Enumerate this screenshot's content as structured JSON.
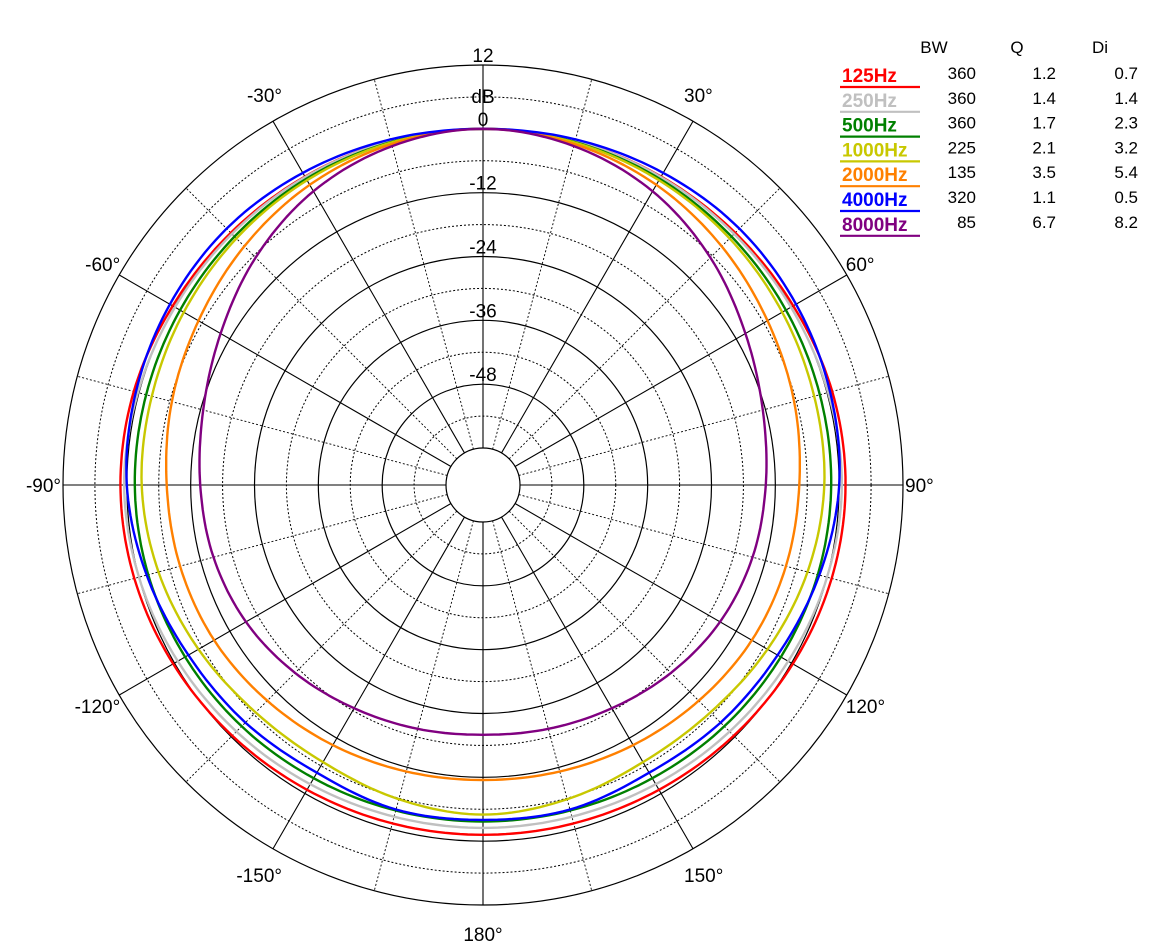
{
  "chart_data": {
    "type": "polar",
    "units_label": "dB",
    "radial_ticks": [
      12,
      0,
      -12,
      -24,
      -36,
      -48
    ],
    "radial_range": [
      -60,
      12
    ],
    "angle_labels": [
      {
        "angle": 0,
        "text": ""
      },
      {
        "angle": 30,
        "text": "30°"
      },
      {
        "angle": 60,
        "text": "60°"
      },
      {
        "angle": 90,
        "text": "90°"
      },
      {
        "angle": 120,
        "text": "120°"
      },
      {
        "angle": 150,
        "text": "150°"
      },
      {
        "angle": 180,
        "text": "180°"
      },
      {
        "angle": -150,
        "text": "-150°"
      },
      {
        "angle": -120,
        "text": "-120°"
      },
      {
        "angle": -90,
        "text": "-90°"
      },
      {
        "angle": -60,
        "text": "-60°"
      },
      {
        "angle": -30,
        "text": "-30°"
      }
    ],
    "grid": true,
    "legend": {
      "placement": "top-right",
      "headers": [
        "BW",
        "Q",
        "Di"
      ]
    },
    "angles": [
      0,
      15,
      30,
      45,
      60,
      75,
      90,
      105,
      120,
      135,
      150,
      165,
      180,
      195,
      210,
      225,
      240,
      255,
      270,
      285,
      300,
      315,
      330,
      345
    ],
    "series": [
      {
        "name": "125Hz",
        "color": "#ff0000",
        "bw": "360",
        "q": "1.2",
        "di": "0.7",
        "values": [
          0,
          0,
          0,
          0.1,
          0.4,
          1.0,
          1.2,
          0.9,
          0.3,
          -0.3,
          -0.8,
          -1.1,
          -1.2,
          -1.1,
          -0.8,
          -0.3,
          0.3,
          0.9,
          1.2,
          1.0,
          0.4,
          0.1,
          0,
          0
        ]
      },
      {
        "name": "250Hz",
        "color": "#c0c0c0",
        "bw": "360",
        "q": "1.4",
        "di": "1.4",
        "values": [
          0,
          0,
          -0.1,
          -0.2,
          -0.1,
          0.2,
          0.5,
          0.0,
          -0.7,
          -1.4,
          -2.0,
          -2.4,
          -2.5,
          -2.4,
          -2.0,
          -1.4,
          -0.7,
          0.0,
          0.5,
          0.2,
          -0.1,
          -0.2,
          -0.1,
          0
        ]
      },
      {
        "name": "500Hz",
        "color": "#008000",
        "bw": "360",
        "q": "1.7",
        "di": "2.3",
        "values": [
          0,
          -0.2,
          -0.5,
          -0.9,
          -1.2,
          -1.4,
          -1.5,
          -1.8,
          -2.3,
          -2.8,
          -3.3,
          -3.6,
          -3.7,
          -3.6,
          -3.3,
          -2.8,
          -2.3,
          -1.8,
          -1.5,
          -1.4,
          -1.2,
          -0.9,
          -0.5,
          -0.2
        ]
      },
      {
        "name": "1000Hz",
        "color": "#c8c800",
        "bw": "225",
        "q": "2.1",
        "di": "3.2",
        "values": [
          0,
          -0.3,
          -0.8,
          -1.4,
          -2.0,
          -2.5,
          -2.8,
          -3.8,
          -5.2,
          -6.5,
          -6.8,
          -5.8,
          -5.0,
          -5.8,
          -6.8,
          -6.5,
          -5.2,
          -3.8,
          -2.8,
          -2.5,
          -2.0,
          -1.4,
          -0.8,
          -0.3
        ]
      },
      {
        "name": "2000Hz",
        "color": "#ff8000",
        "bw": "135",
        "q": "3.5",
        "di": "5.4",
        "values": [
          0,
          -0.6,
          -1.8,
          -3.5,
          -5.2,
          -6.4,
          -7.5,
          -8.0,
          -8.6,
          -9.6,
          -10.5,
          -11.2,
          -11.5,
          -11.2,
          -10.5,
          -9.6,
          -8.6,
          -8.0,
          -7.5,
          -6.4,
          -5.2,
          -3.5,
          -1.8,
          -0.6
        ]
      },
      {
        "name": "4000Hz",
        "color": "#0000ff",
        "bw": "320",
        "q": "1.1",
        "di": "0.5",
        "values": [
          0,
          0.3,
          0.8,
          1.2,
          1.0,
          0.6,
          0.0,
          -1.5,
          -3.0,
          -3.8,
          -4.5,
          -3.8,
          -4.0,
          -3.8,
          -4.5,
          -3.8,
          -3.0,
          -1.5,
          0.0,
          0.6,
          1.0,
          1.2,
          0.8,
          0.3
        ]
      },
      {
        "name": "8000Hz",
        "color": "#800080",
        "bw": "85",
        "q": "6.7",
        "di": "8.2",
        "values": [
          0,
          -1.0,
          -3.2,
          -6.5,
          -10.0,
          -12.5,
          -13.8,
          -14.5,
          -15.5,
          -17.0,
          -18.5,
          -19.5,
          -20.0,
          -19.5,
          -18.5,
          -17.0,
          -15.5,
          -14.5,
          -13.8,
          -12.5,
          -10.0,
          -6.5,
          -3.2,
          -1.0
        ]
      }
    ]
  }
}
